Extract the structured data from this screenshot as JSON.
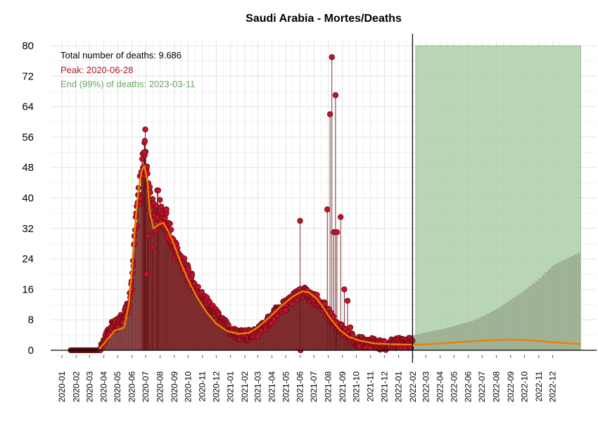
{
  "chart_data": {
    "type": "line",
    "title": "Saudi Arabia - Mortes/Deaths",
    "xlabel": "",
    "ylabel": "",
    "ylim": [
      0,
      80
    ],
    "y_ticks": [
      "0",
      "8",
      "16",
      "24",
      "32",
      "40",
      "48",
      "56",
      "64",
      "72",
      "80"
    ],
    "x_ticks": [
      "2020-01",
      "2020-02",
      "2020-03",
      "2020-04",
      "2020-05",
      "2020-06",
      "2020-07",
      "2020-08",
      "2020-09",
      "2020-10",
      "2020-11",
      "2020-12",
      "2021-01",
      "2021-02",
      "2021-03",
      "2021-04",
      "2021-05",
      "2021-06",
      "2021-07",
      "2021-08",
      "2021-09",
      "2021-10",
      "2021-11",
      "2021-12",
      "2022-01",
      "2022-02",
      "2022-03",
      "2022-04",
      "2022-05",
      "2022-06",
      "2022-07",
      "2022-08",
      "2022-09",
      "2022-10",
      "2022-11",
      "2022-12"
    ],
    "grid": true,
    "annotations": {
      "total": "Total number of deaths: 9.686",
      "peak": "Peak: 2020-06-28",
      "end": "End (99%) of deaths: 2023-03-11"
    },
    "forecast_start": "2022-01-31",
    "forecast_band": {
      "from": "2022-02-07",
      "to": "2023-01-31",
      "value": 80
    },
    "colors": {
      "points": "#c8102e",
      "point_stroke": "#5a1010",
      "area": "#d46a75",
      "smooth": "#f07f00",
      "band": "#a9cda3",
      "forecast_bars": "#9aab8f",
      "peak_text": "#b2182b",
      "end_text": "#6aaa64"
    },
    "daily_deaths_key_points": [
      [
        "2020-01-20",
        0
      ],
      [
        "2020-03-22",
        0
      ],
      [
        "2020-03-25",
        1
      ],
      [
        "2020-04-01",
        3
      ],
      [
        "2020-04-15",
        6
      ],
      [
        "2020-05-01",
        7
      ],
      [
        "2020-05-15",
        9
      ],
      [
        "2020-05-25",
        12
      ],
      [
        "2020-06-01",
        18
      ],
      [
        "2020-06-08",
        32
      ],
      [
        "2020-06-15",
        39
      ],
      [
        "2020-06-20",
        44
      ],
      [
        "2020-06-28",
        50
      ],
      [
        "2020-07-01",
        52
      ],
      [
        "2020-07-05",
        44
      ],
      [
        "2020-07-12",
        38
      ],
      [
        "2020-07-20",
        34
      ],
      [
        "2020-07-30",
        36
      ],
      [
        "2020-08-08",
        35
      ],
      [
        "2020-08-20",
        31
      ],
      [
        "2020-09-01",
        27
      ],
      [
        "2020-09-15",
        24
      ],
      [
        "2020-10-01",
        20
      ],
      [
        "2020-10-15",
        17
      ],
      [
        "2020-11-01",
        14
      ],
      [
        "2020-11-20",
        11
      ],
      [
        "2020-12-10",
        8
      ],
      [
        "2021-01-01",
        5
      ],
      [
        "2021-01-20",
        4
      ],
      [
        "2021-02-10",
        4
      ],
      [
        "2021-03-01",
        5
      ],
      [
        "2021-03-20",
        7
      ],
      [
        "2021-04-10",
        10
      ],
      [
        "2021-05-01",
        12
      ],
      [
        "2021-05-20",
        14
      ],
      [
        "2021-06-10",
        15
      ],
      [
        "2021-06-25",
        14
      ],
      [
        "2021-07-10",
        13
      ],
      [
        "2021-07-25",
        11
      ],
      [
        "2021-08-10",
        8
      ],
      [
        "2021-08-25",
        6
      ],
      [
        "2021-09-10",
        4
      ],
      [
        "2021-09-25",
        3
      ],
      [
        "2021-10-10",
        2
      ],
      [
        "2021-11-01",
        2
      ],
      [
        "2021-12-01",
        1
      ],
      [
        "2022-01-05",
        2
      ],
      [
        "2022-01-31",
        2
      ]
    ],
    "daily_deaths_spikes": [
      [
        "2020-06-25",
        48
      ],
      [
        "2020-06-27",
        52
      ],
      [
        "2020-06-29",
        55
      ],
      [
        "2020-06-30",
        58
      ],
      [
        "2020-07-03",
        20
      ],
      [
        "2020-07-06",
        30
      ],
      [
        "2020-07-16",
        27
      ],
      [
        "2020-07-26",
        42
      ],
      [
        "2020-07-28",
        42
      ],
      [
        "2020-08-15",
        37
      ],
      [
        "2021-06-01",
        34
      ],
      [
        "2021-06-02",
        0
      ],
      [
        "2021-07-30",
        37
      ],
      [
        "2021-08-05",
        62
      ],
      [
        "2021-08-09",
        77
      ],
      [
        "2021-08-13",
        31
      ],
      [
        "2021-08-17",
        67
      ],
      [
        "2021-08-20",
        31
      ],
      [
        "2021-08-28",
        35
      ],
      [
        "2021-09-05",
        16
      ],
      [
        "2021-09-12",
        13
      ],
      [
        "2021-09-18",
        6
      ]
    ],
    "smoothed_trend": [
      [
        "2020-03-22",
        0.3
      ],
      [
        "2020-04-10",
        3
      ],
      [
        "2020-04-25",
        5.2
      ],
      [
        "2020-05-05",
        5.5
      ],
      [
        "2020-05-15",
        6
      ],
      [
        "2020-05-25",
        12
      ],
      [
        "2020-06-01",
        21
      ],
      [
        "2020-06-08",
        33
      ],
      [
        "2020-06-15",
        42
      ],
      [
        "2020-06-22",
        47
      ],
      [
        "2020-06-28",
        48.5
      ],
      [
        "2020-07-05",
        44
      ],
      [
        "2020-07-10",
        36
      ],
      [
        "2020-07-18",
        32
      ],
      [
        "2020-07-28",
        33
      ],
      [
        "2020-08-08",
        33.5
      ],
      [
        "2020-08-20",
        31
      ],
      [
        "2020-09-01",
        27.5
      ],
      [
        "2020-09-15",
        23
      ],
      [
        "2020-10-01",
        18.5
      ],
      [
        "2020-10-20",
        14
      ],
      [
        "2020-11-10",
        10
      ],
      [
        "2020-12-01",
        7
      ],
      [
        "2020-12-25",
        5
      ],
      [
        "2021-01-20",
        4.3
      ],
      [
        "2021-02-10",
        4.6
      ],
      [
        "2021-03-01",
        6
      ],
      [
        "2021-03-25",
        8.5
      ],
      [
        "2021-04-20",
        11.5
      ],
      [
        "2021-05-15",
        14
      ],
      [
        "2021-06-05",
        15.5
      ],
      [
        "2021-06-20",
        15.2
      ],
      [
        "2021-07-05",
        13.8
      ],
      [
        "2021-07-20",
        11.5
      ],
      [
        "2021-08-05",
        8.5
      ],
      [
        "2021-08-25",
        5.5
      ],
      [
        "2021-09-15",
        3.5
      ],
      [
        "2021-10-10",
        2.5
      ],
      [
        "2021-11-10",
        1.8
      ],
      [
        "2021-12-10",
        1.6
      ],
      [
        "2022-01-15",
        1.5
      ],
      [
        "2022-02-15",
        1.5
      ],
      [
        "2022-04-01",
        1.8
      ],
      [
        "2022-06-01",
        2.3
      ],
      [
        "2022-08-01",
        2.7
      ],
      [
        "2022-09-01",
        2.8
      ],
      [
        "2022-10-15",
        2.6
      ],
      [
        "2022-12-01",
        2.1
      ],
      [
        "2023-01-31",
        1.6
      ]
    ],
    "forecast_cumulative_bars": [
      [
        "2022-01-31",
        4
      ],
      [
        "2022-03-01",
        4.8
      ],
      [
        "2022-04-01",
        5.5
      ],
      [
        "2022-05-01",
        6.5
      ],
      [
        "2022-06-01",
        7.5
      ],
      [
        "2022-07-01",
        9
      ],
      [
        "2022-08-01",
        11
      ],
      [
        "2022-09-01",
        13.5
      ],
      [
        "2022-10-01",
        16
      ],
      [
        "2022-11-01",
        19
      ],
      [
        "2022-12-01",
        22.5
      ],
      [
        "2023-01-31",
        26
      ]
    ]
  }
}
